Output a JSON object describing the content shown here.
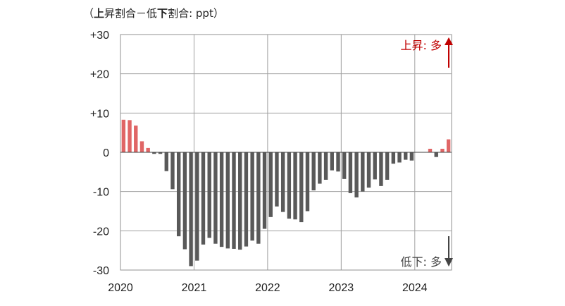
{
  "chart_data": {
    "type": "bar",
    "unit_label": {
      "open": "（",
      "up": "上",
      "mid1": "昇割合－低",
      "down": "下",
      "mid2": "割合",
      "unit": ": ppt",
      "close": "）"
    },
    "yticks": [
      "+30",
      "+20",
      "+10",
      "0",
      "-10",
      "-20",
      "-30"
    ],
    "ytick_values": [
      30,
      20,
      10,
      0,
      -10,
      -20,
      -30
    ],
    "ylim": [
      -30,
      30
    ],
    "year_labels": [
      "2020",
      "2021",
      "2022",
      "2023",
      "2024"
    ],
    "start": "2020-01",
    "values": [
      8.3,
      8.2,
      6.8,
      2.8,
      1.1,
      -0.4,
      -0.4,
      -4.8,
      -9.4,
      -21.4,
      -24.7,
      -29.0,
      -27.6,
      -23.5,
      -21.8,
      -23.3,
      -24.1,
      -24.5,
      -24.6,
      -24.8,
      -24.0,
      -22.5,
      -23.3,
      -19.5,
      -16.5,
      -13.8,
      -15.2,
      -16.9,
      -17.1,
      -17.8,
      -15.0,
      -9.7,
      -8.0,
      -7.0,
      -4.6,
      -4.9,
      -6.8,
      -10.4,
      -11.5,
      -10.0,
      -9.0,
      -6.9,
      -8.6,
      -7.0,
      -2.9,
      -2.6,
      -1.9,
      -2.1,
      0.0,
      0.0,
      0.9,
      -1.2,
      0.9,
      3.3
    ],
    "up_color": "#e06666",
    "down_color": "#595959",
    "legend_up": "上昇: 多",
    "legend_down": "低下: 多",
    "legend_up_color": "#c00000",
    "legend_down_color": "#444444",
    "grid": true
  }
}
